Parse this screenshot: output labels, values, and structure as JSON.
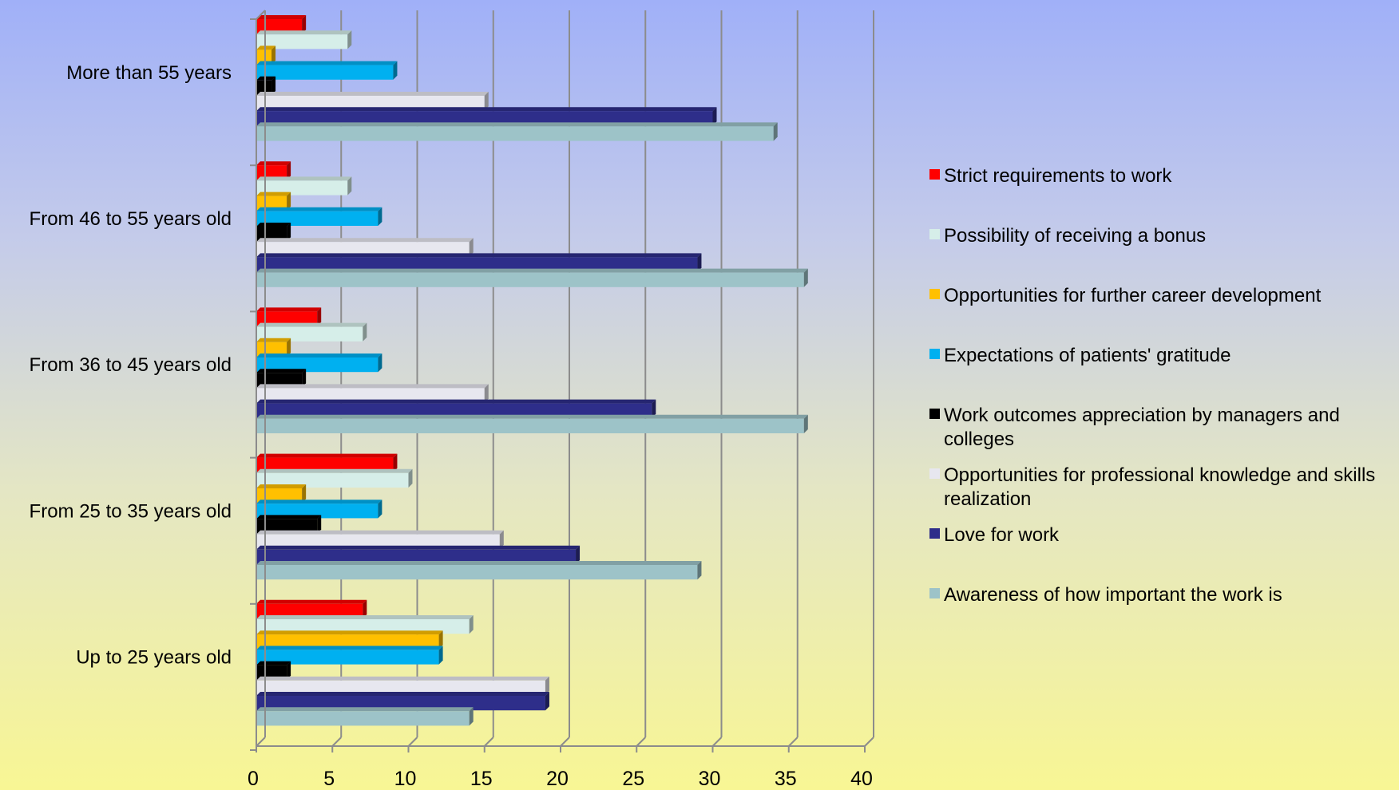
{
  "chart_data": {
    "type": "bar",
    "orientation": "horizontal",
    "title": "",
    "xlabel": "",
    "ylabel": "",
    "xlim": [
      0,
      40
    ],
    "x_ticks": [
      "0",
      "5",
      "10",
      "15",
      "20",
      "25",
      "30",
      "35",
      "40"
    ],
    "categories": [
      "More than 55 years",
      "From 46 to 55 years old",
      "From 36 to 45 years old",
      "From 25 to 35 years old",
      "Up to 25 years old"
    ],
    "series": [
      {
        "name": "Strict requirements to work",
        "color": "#ff0000",
        "values": [
          3,
          2,
          4,
          9,
          7
        ]
      },
      {
        "name": "Possibility of receiving a bonus",
        "color": "#d6eee9",
        "values": [
          6,
          6,
          7,
          10,
          14
        ]
      },
      {
        "name": "Opportunities for further career development",
        "color": "#ffc000",
        "values": [
          1,
          2,
          2,
          3,
          12
        ]
      },
      {
        "name": "Expectations of patients' gratitude",
        "color": "#00b0f0",
        "values": [
          9,
          8,
          8,
          8,
          12
        ]
      },
      {
        "name": "Work outcomes appreciation by managers and colleges",
        "color": "#000000",
        "values": [
          1,
          2,
          3,
          4,
          2
        ]
      },
      {
        "name": "Opportunities for professional knowledge and skills realization",
        "color": "#e7e7ef",
        "values": [
          15,
          14,
          15,
          16,
          19
        ]
      },
      {
        "name": "Love for work",
        "color": "#2e2e8a",
        "values": [
          30,
          29,
          26,
          21,
          19
        ]
      },
      {
        "name": "Awareness of how important the work is",
        "color": "#9dc3c8",
        "values": [
          34,
          36,
          36,
          29,
          14
        ]
      }
    ],
    "grid": "vertical",
    "legend_position": "right"
  }
}
